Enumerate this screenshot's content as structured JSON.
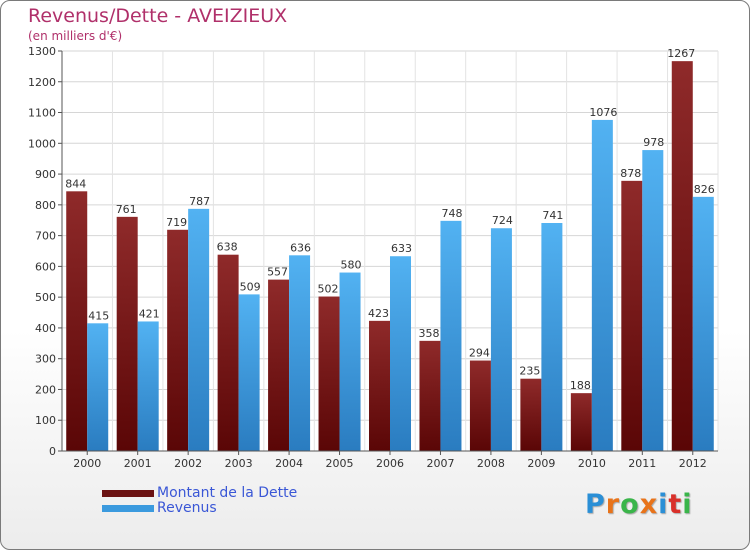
{
  "header": {
    "title": "Revenus/Dette - AVEIZIEUX",
    "subtitle": "(en milliers d'€)"
  },
  "colors": {
    "title": "#b0306a",
    "dette": "#7a1c1c",
    "revenus": "#3b9ade",
    "legend_text": "#3a57d6"
  },
  "legend": {
    "items": [
      {
        "label": "Montant de la Dette",
        "color": "#6b1212"
      },
      {
        "label": "Revenus",
        "color": "#3b9ade"
      }
    ]
  },
  "logo": {
    "letters": [
      "P",
      "r",
      "o",
      "x",
      "i",
      "t",
      "i"
    ],
    "colors": [
      "#2a8fd6",
      "#e8731a",
      "#3ab54a",
      "#e8731a",
      "#2a8fd6",
      "#d9302a",
      "#3ab54a"
    ]
  },
  "chart_data": {
    "type": "bar",
    "categories": [
      "2000",
      "2001",
      "2002",
      "2003",
      "2004",
      "2005",
      "2006",
      "2007",
      "2008",
      "2009",
      "2010",
      "2011",
      "2012"
    ],
    "series": [
      {
        "name": "Montant de la Dette",
        "values": [
          844,
          761,
          719,
          638,
          557,
          502,
          423,
          358,
          294,
          235,
          188,
          878,
          1267
        ]
      },
      {
        "name": "Revenus",
        "values": [
          415,
          421,
          787,
          509,
          636,
          580,
          633,
          748,
          724,
          741,
          1076,
          978,
          826
        ]
      }
    ],
    "ylim": [
      0,
      1300
    ],
    "yticks": [
      0,
      100,
      200,
      300,
      400,
      500,
      600,
      700,
      800,
      900,
      1000,
      1100,
      1200,
      1300
    ],
    "grid": true,
    "legend_position": "bottom-left"
  }
}
